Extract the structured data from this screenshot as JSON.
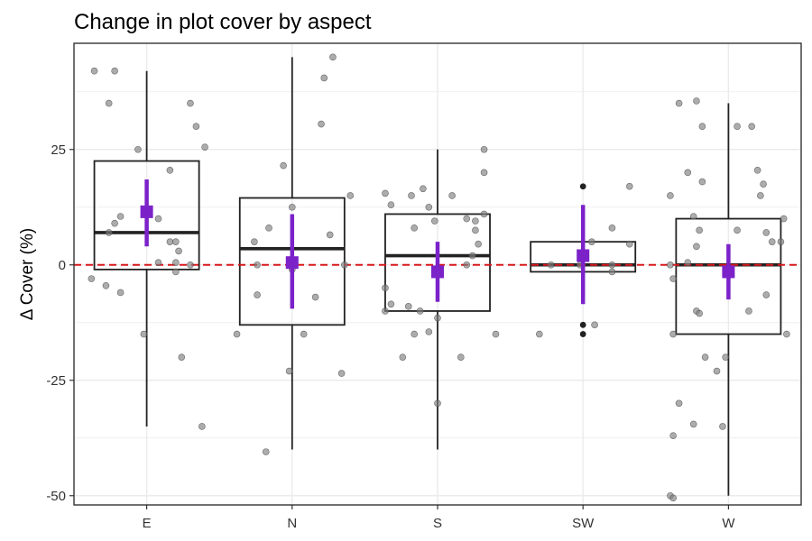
{
  "chart_data": {
    "type": "box",
    "title": "Change in plot cover by aspect",
    "xlabel": "",
    "ylabel": "Δ Cover (%)",
    "ylim": [
      -52,
      48
    ],
    "yticks": [
      -50,
      -25,
      0,
      25
    ],
    "categories": [
      "E",
      "N",
      "S",
      "SW",
      "W"
    ],
    "grid": true,
    "reference_line": {
      "y": 0,
      "style": "dashed",
      "color": "#d7191c"
    },
    "colors": {
      "box": "#222222",
      "mean": "#7b22c9",
      "points": "#808080",
      "background": "#ffffff",
      "grid": "#ebebeb"
    },
    "boxes": [
      {
        "category": "E",
        "whisker_low": -35,
        "q1": -1,
        "median": 7,
        "q3": 22.5,
        "whisker_high": 42,
        "outliers": []
      },
      {
        "category": "N",
        "whisker_low": -40,
        "q1": -13,
        "median": 3.5,
        "q3": 14.5,
        "whisker_high": 45,
        "outliers": []
      },
      {
        "category": "S",
        "whisker_low": -40,
        "q1": -10,
        "median": 2,
        "q3": 11,
        "whisker_high": 25,
        "outliers": []
      },
      {
        "category": "SW",
        "whisker_low": -1.5,
        "q1": -1.5,
        "median": 0,
        "q3": 5,
        "whisker_high": 5,
        "outliers": [
          17,
          -13,
          -15
        ]
      },
      {
        "category": "W",
        "whisker_low": -50,
        "q1": -15,
        "median": 0,
        "q3": 10,
        "whisker_high": 35,
        "outliers": []
      }
    ],
    "means": [
      {
        "category": "E",
        "mean": 11.5,
        "ci_low": 4,
        "ci_high": 18.5
      },
      {
        "category": "N",
        "mean": 0.5,
        "ci_low": -9.5,
        "ci_high": 11
      },
      {
        "category": "S",
        "mean": -1.5,
        "ci_low": -8,
        "ci_high": 5
      },
      {
        "category": "SW",
        "mean": 2,
        "ci_low": -8.5,
        "ci_high": 13
      },
      {
        "category": "W",
        "mean": -1.5,
        "ci_low": -7.5,
        "ci_high": 4.5
      }
    ],
    "points": [
      {
        "category": "E",
        "x": -0.36,
        "y": 42
      },
      {
        "category": "E",
        "x": -0.22,
        "y": 42
      },
      {
        "category": "E",
        "x": -0.26,
        "y": 35
      },
      {
        "category": "E",
        "x": 0.3,
        "y": 35
      },
      {
        "category": "E",
        "x": 0.34,
        "y": 30
      },
      {
        "category": "E",
        "x": 0.4,
        "y": 25.5
      },
      {
        "category": "E",
        "x": -0.06,
        "y": 25
      },
      {
        "category": "E",
        "x": 0.16,
        "y": 20.5
      },
      {
        "category": "E",
        "x": 0.08,
        "y": 10
      },
      {
        "category": "E",
        "x": -0.18,
        "y": 10.5
      },
      {
        "category": "E",
        "x": -0.22,
        "y": 9
      },
      {
        "category": "E",
        "x": -0.26,
        "y": 7
      },
      {
        "category": "E",
        "x": 0.16,
        "y": 5
      },
      {
        "category": "E",
        "x": 0.2,
        "y": 5
      },
      {
        "category": "E",
        "x": 0.22,
        "y": 3
      },
      {
        "category": "E",
        "x": 0.08,
        "y": 0.5
      },
      {
        "category": "E",
        "x": 0.2,
        "y": 0.5
      },
      {
        "category": "E",
        "x": 0.3,
        "y": 0
      },
      {
        "category": "E",
        "x": 0.2,
        "y": -1.5
      },
      {
        "category": "E",
        "x": -0.38,
        "y": -3
      },
      {
        "category": "E",
        "x": -0.28,
        "y": -4.5
      },
      {
        "category": "E",
        "x": -0.18,
        "y": -6
      },
      {
        "category": "E",
        "x": -0.02,
        "y": -15
      },
      {
        "category": "E",
        "x": 0.24,
        "y": -20
      },
      {
        "category": "E",
        "x": 0.38,
        "y": -35
      },
      {
        "category": "N",
        "x": 0.28,
        "y": 45
      },
      {
        "category": "N",
        "x": 0.22,
        "y": 40.5
      },
      {
        "category": "N",
        "x": 0.2,
        "y": 30.5
      },
      {
        "category": "N",
        "x": -0.06,
        "y": 21.5
      },
      {
        "category": "N",
        "x": 0.4,
        "y": 15
      },
      {
        "category": "N",
        "x": 0.0,
        "y": 12.5
      },
      {
        "category": "N",
        "x": -0.16,
        "y": 8
      },
      {
        "category": "N",
        "x": 0.26,
        "y": 6.5
      },
      {
        "category": "N",
        "x": -0.26,
        "y": 5
      },
      {
        "category": "N",
        "x": -0.24,
        "y": 0
      },
      {
        "category": "N",
        "x": 0.36,
        "y": 0
      },
      {
        "category": "N",
        "x": 0.0,
        "y": -1
      },
      {
        "category": "N",
        "x": -0.24,
        "y": -6.5
      },
      {
        "category": "N",
        "x": 0.16,
        "y": -7
      },
      {
        "category": "N",
        "x": -0.38,
        "y": -15
      },
      {
        "category": "N",
        "x": 0.08,
        "y": -15
      },
      {
        "category": "N",
        "x": -0.02,
        "y": -23
      },
      {
        "category": "N",
        "x": 0.34,
        "y": -23.5
      },
      {
        "category": "N",
        "x": -0.18,
        "y": -40.5
      },
      {
        "category": "S",
        "x": 0.32,
        "y": 25
      },
      {
        "category": "S",
        "x": 0.32,
        "y": 20
      },
      {
        "category": "S",
        "x": -0.1,
        "y": 16.5
      },
      {
        "category": "S",
        "x": -0.36,
        "y": 15.5
      },
      {
        "category": "S",
        "x": -0.18,
        "y": 15
      },
      {
        "category": "S",
        "x": 0.1,
        "y": 15
      },
      {
        "category": "S",
        "x": -0.06,
        "y": 12.5
      },
      {
        "category": "S",
        "x": -0.32,
        "y": 13
      },
      {
        "category": "S",
        "x": 0.32,
        "y": 11
      },
      {
        "category": "S",
        "x": 0.2,
        "y": 10
      },
      {
        "category": "S",
        "x": 0.26,
        "y": 9.5
      },
      {
        "category": "S",
        "x": -0.02,
        "y": 9.5
      },
      {
        "category": "S",
        "x": -0.16,
        "y": 8
      },
      {
        "category": "S",
        "x": 0.26,
        "y": 7.5
      },
      {
        "category": "S",
        "x": 0.28,
        "y": 4.5
      },
      {
        "category": "S",
        "x": 0.24,
        "y": 2
      },
      {
        "category": "S",
        "x": -0.36,
        "y": -5
      },
      {
        "category": "S",
        "x": -0.32,
        "y": -8.5
      },
      {
        "category": "S",
        "x": -0.2,
        "y": -9
      },
      {
        "category": "S",
        "x": -0.36,
        "y": -10
      },
      {
        "category": "S",
        "x": -0.12,
        "y": -10
      },
      {
        "category": "S",
        "x": 0.0,
        "y": -11.5
      },
      {
        "category": "S",
        "x": -0.06,
        "y": -14.5
      },
      {
        "category": "S",
        "x": -0.16,
        "y": -15
      },
      {
        "category": "S",
        "x": 0.4,
        "y": -15
      },
      {
        "category": "S",
        "x": -0.24,
        "y": -20
      },
      {
        "category": "S",
        "x": 0.16,
        "y": -20
      },
      {
        "category": "S",
        "x": 0.0,
        "y": -30
      },
      {
        "category": "S",
        "x": 0.2,
        "y": 0
      },
      {
        "category": "SW",
        "x": 0.32,
        "y": 17
      },
      {
        "category": "SW",
        "x": 0.2,
        "y": 8
      },
      {
        "category": "SW",
        "x": 0.06,
        "y": 5
      },
      {
        "category": "SW",
        "x": 0.32,
        "y": 4.5
      },
      {
        "category": "SW",
        "x": 0.2,
        "y": 0
      },
      {
        "category": "SW",
        "x": -0.22,
        "y": 0
      },
      {
        "category": "SW",
        "x": -0.02,
        "y": 0
      },
      {
        "category": "SW",
        "x": 0.08,
        "y": -13
      },
      {
        "category": "SW",
        "x": -0.3,
        "y": -15
      },
      {
        "category": "SW",
        "x": 0.2,
        "y": -1.5
      },
      {
        "category": "W",
        "x": -0.34,
        "y": 35
      },
      {
        "category": "W",
        "x": -0.22,
        "y": 35.5
      },
      {
        "category": "W",
        "x": -0.18,
        "y": 30
      },
      {
        "category": "W",
        "x": 0.06,
        "y": 30
      },
      {
        "category": "W",
        "x": 0.16,
        "y": 30
      },
      {
        "category": "W",
        "x": 0.2,
        "y": 20.5
      },
      {
        "category": "W",
        "x": -0.28,
        "y": 20
      },
      {
        "category": "W",
        "x": -0.18,
        "y": 18
      },
      {
        "category": "W",
        "x": 0.24,
        "y": 17.5
      },
      {
        "category": "W",
        "x": -0.4,
        "y": 15
      },
      {
        "category": "W",
        "x": 0.22,
        "y": 15
      },
      {
        "category": "W",
        "x": -0.24,
        "y": 10.5
      },
      {
        "category": "W",
        "x": 0.38,
        "y": 10
      },
      {
        "category": "W",
        "x": -0.2,
        "y": 7.5
      },
      {
        "category": "W",
        "x": 0.06,
        "y": 7.5
      },
      {
        "category": "W",
        "x": 0.26,
        "y": 7
      },
      {
        "category": "W",
        "x": 0.3,
        "y": 5
      },
      {
        "category": "W",
        "x": 0.36,
        "y": 5
      },
      {
        "category": "W",
        "x": -0.22,
        "y": 4
      },
      {
        "category": "W",
        "x": -0.28,
        "y": 0.5
      },
      {
        "category": "W",
        "x": -0.4,
        "y": 0
      },
      {
        "category": "W",
        "x": -0.38,
        "y": -3
      },
      {
        "category": "W",
        "x": 0.26,
        "y": -6.5
      },
      {
        "category": "W",
        "x": -0.22,
        "y": -10
      },
      {
        "category": "W",
        "x": -0.2,
        "y": -10.5
      },
      {
        "category": "W",
        "x": 0.14,
        "y": -10
      },
      {
        "category": "W",
        "x": -0.38,
        "y": -15
      },
      {
        "category": "W",
        "x": 0.4,
        "y": -15
      },
      {
        "category": "W",
        "x": -0.16,
        "y": -20
      },
      {
        "category": "W",
        "x": -0.02,
        "y": -20
      },
      {
        "category": "W",
        "x": -0.08,
        "y": -23
      },
      {
        "category": "W",
        "x": -0.34,
        "y": -30
      },
      {
        "category": "W",
        "x": -0.24,
        "y": -34.5
      },
      {
        "category": "W",
        "x": -0.04,
        "y": -35
      },
      {
        "category": "W",
        "x": -0.38,
        "y": -37
      },
      {
        "category": "W",
        "x": -0.4,
        "y": -50
      },
      {
        "category": "W",
        "x": -0.38,
        "y": -50.5
      }
    ]
  }
}
